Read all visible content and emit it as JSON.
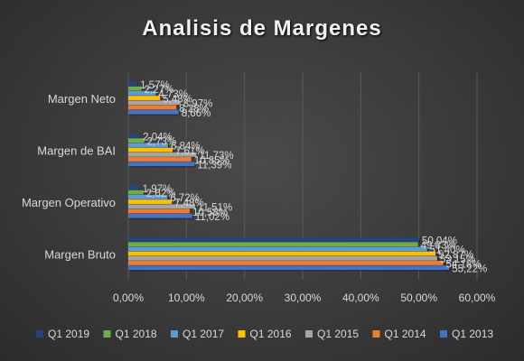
{
  "chart_data": {
    "type": "bar",
    "orientation": "horizontal",
    "title": "Analisis de Margenes",
    "categories": [
      "Margen Bruto",
      "Margen Operativo",
      "Margen de BAI",
      "Margen Neto"
    ],
    "xlim": [
      0,
      60
    ],
    "xticks": [
      0,
      10,
      20,
      30,
      40,
      50,
      60
    ],
    "xtick_labels": [
      "0,00%",
      "10,00%",
      "20,00%",
      "30,00%",
      "40,00%",
      "50,00%",
      "60,00%"
    ],
    "grid": true,
    "legend_position": "bottom",
    "series": [
      {
        "name": "Q1 2019",
        "color": "#264478",
        "values": [
          50.04,
          1.97,
          2.04,
          1.57
        ],
        "labels": [
          "50,04%",
          "1,97%",
          "2,04%",
          "1,57%"
        ]
      },
      {
        "name": "Q1 2018",
        "color": "#70ad47",
        "values": [
          49.83,
          2.62,
          2.73,
          2.27
        ],
        "labels": [
          "49,83%",
          "2,62%",
          "2,73%",
          "2,27%"
        ]
      },
      {
        "name": "Q1 2017",
        "color": "#5b9bd5",
        "values": [
          51.4,
          6.72,
          6.84,
          4.73
        ],
        "labels": [
          "51,40%",
          "6,72%",
          "6,84%",
          "4,73%"
        ]
      },
      {
        "name": "Q1 2016",
        "color": "#ffc000",
        "values": [
          52.87,
          7.48,
          7.61,
          5.48
        ],
        "labels": [
          "52,87%",
          "7,48%",
          "7,61%",
          "5,48%"
        ]
      },
      {
        "name": "Q1 2015",
        "color": "#a5a5a5",
        "values": [
          53.15,
          11.51,
          11.73,
          8.97
        ],
        "labels": [
          "53,15%",
          "11,51%",
          "11,73%",
          "8,97%"
        ]
      },
      {
        "name": "Q1 2014",
        "color": "#ed7d31",
        "values": [
          54.18,
          10.58,
          10.85,
          8.28
        ],
        "labels": [
          "54,18%",
          "10,58%",
          "10,85%",
          "8,28%"
        ]
      },
      {
        "name": "Q1 2013",
        "color": "#4472c4",
        "values": [
          55.22,
          11.02,
          11.39,
          8.66
        ],
        "labels": [
          "55,22%",
          "11,02%",
          "11,39%",
          "8,66%"
        ]
      }
    ]
  }
}
